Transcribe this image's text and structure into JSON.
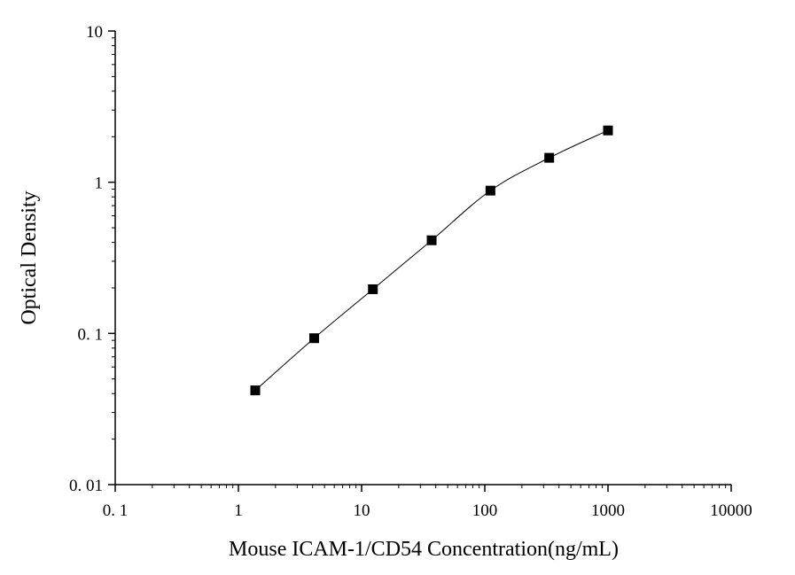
{
  "chart_data": {
    "type": "scatter",
    "title": "",
    "xlabel": "Mouse ICAM-1/CD54 Concentration(ng/mL)",
    "ylabel": "Optical Density",
    "xscale": "log",
    "yscale": "log",
    "xlim": [
      0.1,
      10000
    ],
    "ylim": [
      0.01,
      10
    ],
    "xticks": [
      0.1,
      1,
      10,
      100,
      1000,
      10000
    ],
    "xtick_labels": [
      "0. 1",
      "1",
      "10",
      "100",
      "1000",
      "10000"
    ],
    "yticks": [
      0.01,
      0.1,
      1,
      10
    ],
    "ytick_labels": [
      "0. 01",
      "0. 1",
      "1",
      "10"
    ],
    "grid": false,
    "series": [
      {
        "x": [
          1.37,
          4.12,
          12.35,
          37.04,
          111.1,
          333.3,
          1000
        ],
        "y": [
          0.042,
          0.093,
          0.196,
          0.413,
          0.88,
          1.45,
          2.2
        ],
        "marker": "square",
        "line": "smooth",
        "color": "#000000"
      }
    ]
  }
}
